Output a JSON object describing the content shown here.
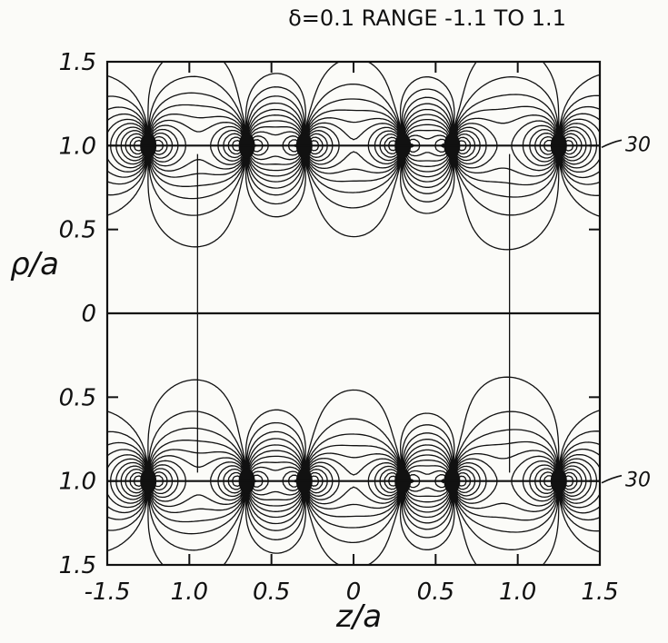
{
  "title": "δ=0.1  RANGE -1.1 TO 1.1",
  "x_axis": {
    "label": "z/a",
    "ticks": [
      {
        "value": -1.5,
        "label": "-1.5"
      },
      {
        "value": -1.0,
        "label": "1.0"
      },
      {
        "value": -0.5,
        "label": "0.5"
      },
      {
        "value": 0.0,
        "label": "0"
      },
      {
        "value": 0.5,
        "label": "0.5"
      },
      {
        "value": 1.0,
        "label": "1.0"
      },
      {
        "value": 1.5,
        "label": "1.5"
      }
    ]
  },
  "y_axis": {
    "label": "ρ/a",
    "ticks": [
      {
        "value": 1.5,
        "label": "1.5"
      },
      {
        "value": 1.0,
        "label": "1.0"
      },
      {
        "value": 0.5,
        "label": "0.5"
      },
      {
        "value": 0.0,
        "label": "0"
      },
      {
        "value": -0.5,
        "label": "0.5"
      },
      {
        "value": -1.0,
        "label": "1.0"
      },
      {
        "value": -1.5,
        "label": "1.5"
      }
    ]
  },
  "annotations": [
    {
      "text": "30",
      "rho": 1.0
    },
    {
      "text": "30",
      "rho": -1.0
    }
  ],
  "charge_z": [
    -1.25,
    -0.65,
    -0.3,
    0.3,
    0.6,
    1.25
  ],
  "range": [
    -1.1,
    1.1
  ],
  "colors": {
    "ink": "#111111",
    "paper": "#fbfbf8"
  }
}
